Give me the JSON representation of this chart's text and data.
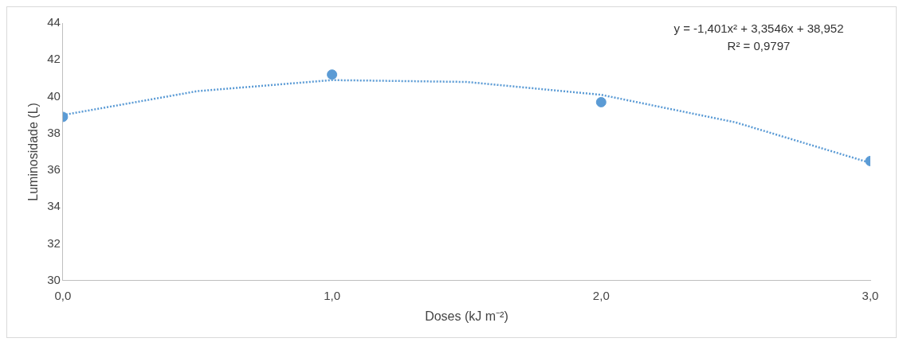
{
  "chart_data": {
    "type": "scatter",
    "xlabel": "Doses (kJ m⁻²)",
    "ylabel": "Luminosidade (L)",
    "xlim": [
      0,
      3
    ],
    "xticks": [
      {
        "value": 0,
        "label": "0,0"
      },
      {
        "value": 1,
        "label": "1,0"
      },
      {
        "value": 2,
        "label": "2,0"
      },
      {
        "value": 3,
        "label": "3,0"
      }
    ],
    "ylim": [
      30,
      44
    ],
    "yticks": [
      30,
      32,
      34,
      36,
      38,
      40,
      42,
      44
    ],
    "grid": false,
    "legend": false,
    "annotations": [
      "y = -1,401x² + 3,3546x + 38,952",
      "R² = 0,9797"
    ],
    "series": [
      {
        "type": "scatter",
        "color": "#5b9bd5",
        "marker": "circle",
        "x": [
          0,
          1,
          2,
          3
        ],
        "values": [
          38.9,
          41.2,
          39.7,
          36.5
        ]
      },
      {
        "type": "line",
        "color": "#5b9bd5",
        "marker": "none",
        "line_style": "dotted",
        "x": [
          0,
          0.5,
          1,
          1.5,
          2,
          2.5,
          3
        ],
        "values": [
          39.0,
          40.3,
          40.9,
          40.8,
          40.1,
          38.6,
          36.4
        ]
      }
    ]
  }
}
